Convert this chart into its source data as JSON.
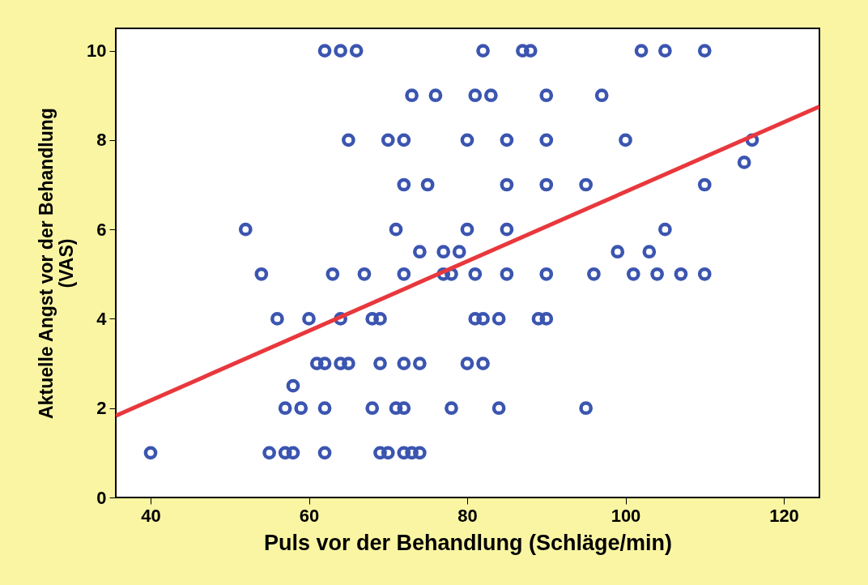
{
  "chart_data": {
    "type": "scatter",
    "xlabel": "Puls vor der Behandlung (Schläge/min)",
    "ylabel": "Aktuelle Angst vor der Behandlung (VAS)",
    "xlim": [
      35.6,
      124.5
    ],
    "ylim": [
      0,
      10.5
    ],
    "xticks": [
      40,
      60,
      80,
      100,
      120
    ],
    "yticks": [
      0,
      2,
      4,
      6,
      8,
      10
    ],
    "grid": false,
    "series": [
      {
        "marker": "circle",
        "color": "#3b55b0",
        "x": [
          62,
          64,
          66,
          82,
          87,
          88,
          102,
          105,
          110,
          73,
          76,
          81,
          83,
          90,
          97,
          65,
          70,
          72,
          80,
          85,
          90,
          100,
          116,
          115,
          72,
          75,
          85,
          90,
          95,
          110,
          52,
          71,
          80,
          85,
          105,
          74,
          77,
          79,
          99,
          103,
          54,
          63,
          67,
          72,
          77,
          78,
          81,
          85,
          90,
          96,
          101,
          104,
          107,
          110,
          56,
          60,
          64,
          68,
          69,
          81,
          82,
          84,
          89,
          90,
          61,
          62,
          64,
          65,
          69,
          72,
          74,
          80,
          82,
          58,
          57,
          59,
          62,
          68,
          71,
          72,
          78,
          84,
          95,
          40,
          55,
          57,
          58,
          62,
          69,
          70,
          72,
          73,
          74
        ],
        "values": [
          10,
          10,
          10,
          10,
          10,
          10,
          10,
          10,
          10,
          9,
          9,
          9,
          9,
          9,
          9,
          8,
          8,
          8,
          8,
          8,
          8,
          8,
          8,
          7.5,
          7,
          7,
          7,
          7,
          7,
          7,
          6,
          6,
          6,
          6,
          6,
          5.5,
          5.5,
          5.5,
          5.5,
          5.5,
          5,
          5,
          5,
          5,
          5,
          5,
          5,
          5,
          5,
          5,
          5,
          5,
          5,
          5,
          4,
          4,
          4,
          4,
          4,
          4,
          4,
          4,
          4,
          4,
          3,
          3,
          3,
          3,
          3,
          3,
          3,
          3,
          3,
          2.5,
          2,
          2,
          2,
          2,
          2,
          2,
          2,
          2,
          2,
          1,
          1,
          1,
          1,
          1,
          1,
          1,
          1,
          1,
          1
        ]
      },
      {
        "type": "line",
        "color": "#e8383d",
        "x": [
          35.6,
          124.5
        ],
        "values": [
          1.83,
          8.75
        ]
      }
    ]
  }
}
